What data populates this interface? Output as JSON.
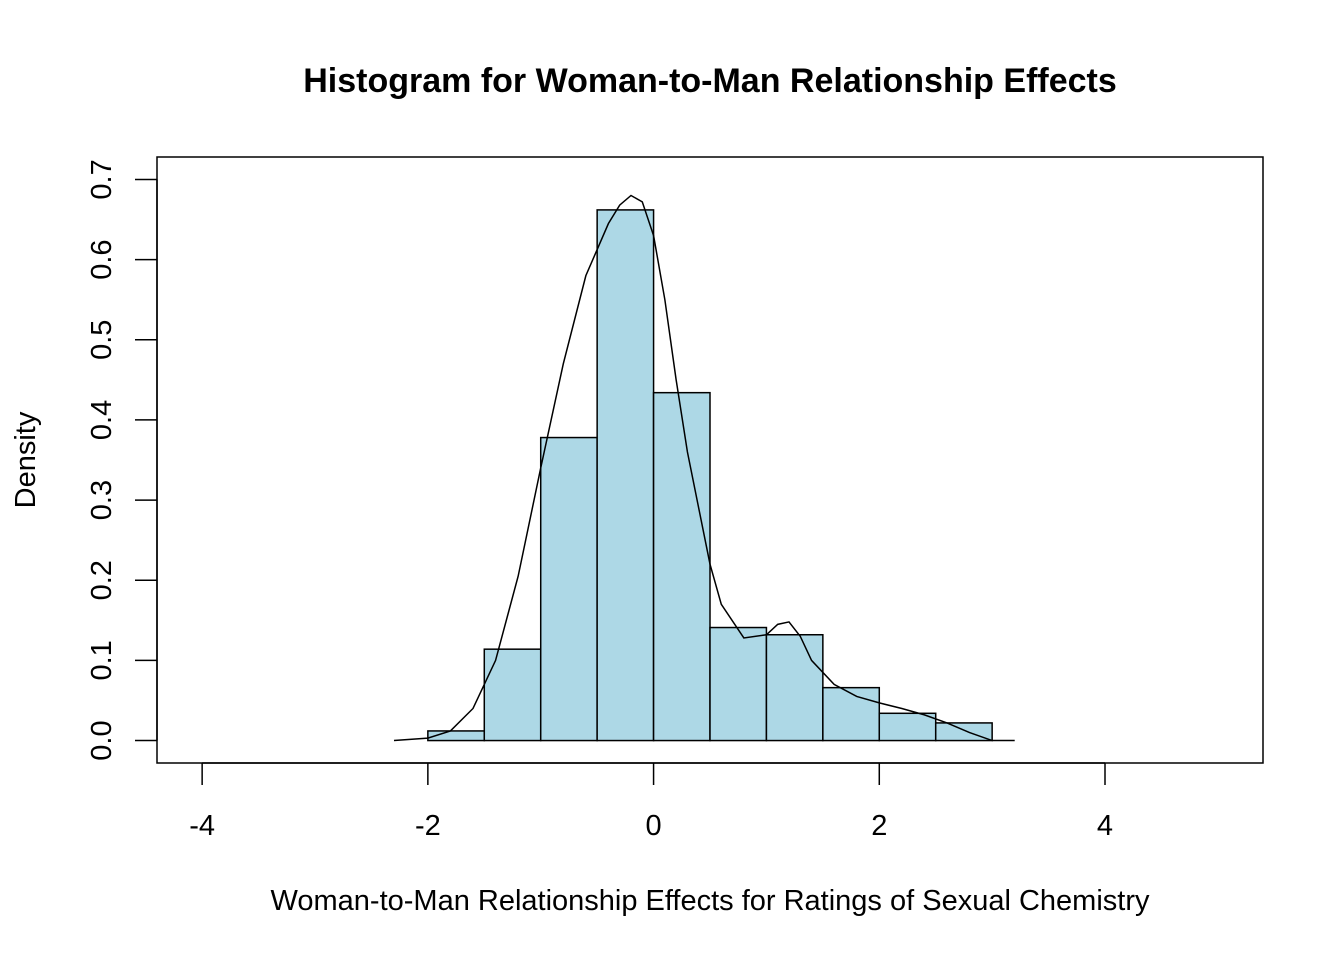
{
  "chart_data": {
    "type": "bar",
    "title": "Histogram for Woman-to-Man Relationship Effects",
    "xlabel": "Woman-to-Man Relationship Effects for Ratings of Sexual Chemistry",
    "ylabel": "Density",
    "xlim": [
      -4.4,
      5.4
    ],
    "ylim": [
      -0.028,
      0.728
    ],
    "x_ticks": [
      -4,
      -2,
      0,
      2,
      4
    ],
    "x_tick_labels": [
      "-4",
      "-2",
      "0",
      "2",
      "4"
    ],
    "y_ticks": [
      0.0,
      0.1,
      0.2,
      0.3,
      0.4,
      0.5,
      0.6,
      0.7
    ],
    "y_tick_labels": [
      "0.0",
      "0.1",
      "0.2",
      "0.3",
      "0.4",
      "0.5",
      "0.6",
      "0.7"
    ],
    "bin_edges": [
      -2.0,
      -1.5,
      -1.0,
      -0.5,
      0.0,
      0.5,
      1.0,
      1.5,
      2.0,
      2.5,
      3.0
    ],
    "values": [
      0.012,
      0.114,
      0.378,
      0.662,
      0.434,
      0.141,
      0.132,
      0.066,
      0.034,
      0.022
    ],
    "bar_color": "#add8e6",
    "grid": false,
    "legend": "none",
    "density_curve": {
      "x": [
        -2.3,
        -2.0,
        -1.8,
        -1.6,
        -1.4,
        -1.2,
        -1.0,
        -0.8,
        -0.6,
        -0.4,
        -0.3,
        -0.2,
        -0.1,
        0.0,
        0.1,
        0.2,
        0.3,
        0.4,
        0.5,
        0.6,
        0.8,
        1.0,
        1.1,
        1.2,
        1.3,
        1.4,
        1.6,
        1.8,
        2.0,
        2.2,
        2.4,
        2.6,
        2.8,
        3.0,
        3.2
      ],
      "y": [
        0.0,
        0.003,
        0.012,
        0.04,
        0.1,
        0.205,
        0.34,
        0.47,
        0.58,
        0.645,
        0.668,
        0.68,
        0.672,
        0.63,
        0.55,
        0.45,
        0.36,
        0.29,
        0.22,
        0.17,
        0.128,
        0.132,
        0.145,
        0.148,
        0.13,
        0.1,
        0.07,
        0.055,
        0.047,
        0.04,
        0.032,
        0.022,
        0.01,
        0.0,
        0.0
      ]
    }
  }
}
